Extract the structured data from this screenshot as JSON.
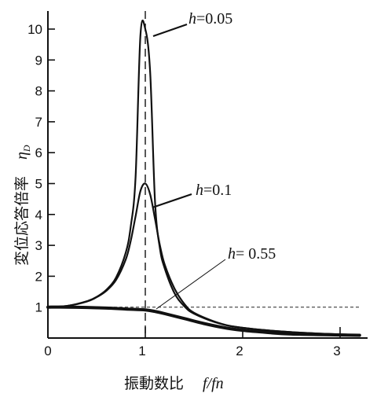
{
  "chart_data": {
    "type": "line",
    "title": "",
    "xlabel": "振動数比 f/fn",
    "xlabel_main": "振動数比",
    "xlabel_math": "f/fn",
    "ylabel": "変位応答倍率 ηD",
    "ylabel_main": "変位応答倍率",
    "ylabel_math": "η",
    "ylabel_sub": "D",
    "xlim": [
      0,
      3.2
    ],
    "ylim": [
      0,
      10.6
    ],
    "x_ticks": [
      0,
      1,
      2,
      3
    ],
    "y_ticks": [
      1,
      2,
      3,
      4,
      5,
      6,
      7,
      8,
      9,
      10
    ],
    "x_tick_labels": [
      "0",
      "1",
      "2",
      "3"
    ],
    "y_tick_labels": [
      "1",
      "2",
      "3",
      "4",
      "5",
      "6",
      "7",
      "8",
      "9",
      "10"
    ],
    "resonance_line_x": 1,
    "reference_line_y": 1,
    "grid": false,
    "series": [
      {
        "name": "h=0.05",
        "label_var": "h",
        "label_eq": "=0.05",
        "damping": 0.05,
        "x": [
          0,
          0.2,
          0.4,
          0.5,
          0.6,
          0.7,
          0.8,
          0.85,
          0.9,
          0.95,
          1.0,
          1.05,
          1.1,
          1.15,
          1.2,
          1.3,
          1.4,
          1.5,
          1.75,
          2.0,
          2.5,
          3.0,
          3.2
        ],
        "values": [
          1.0,
          1.04,
          1.19,
          1.33,
          1.56,
          1.96,
          2.77,
          3.6,
          5.2,
          9.8,
          10.0,
          8.6,
          4.4,
          2.9,
          2.25,
          1.45,
          1.03,
          0.79,
          0.48,
          0.33,
          0.19,
          0.12,
          0.11
        ]
      },
      {
        "name": "h=0.1",
        "label_var": "h",
        "label_eq": "=0.1",
        "damping": 0.1,
        "x": [
          0,
          0.2,
          0.4,
          0.5,
          0.6,
          0.7,
          0.8,
          0.85,
          0.9,
          0.95,
          1.0,
          1.05,
          1.1,
          1.15,
          1.2,
          1.3,
          1.4,
          1.5,
          1.75,
          2.0,
          2.5,
          3.0,
          3.2
        ],
        "values": [
          1.0,
          1.04,
          1.18,
          1.32,
          1.53,
          1.88,
          2.55,
          3.14,
          3.94,
          4.76,
          5.0,
          4.65,
          3.85,
          3.0,
          2.37,
          1.6,
          1.11,
          0.82,
          0.49,
          0.33,
          0.19,
          0.12,
          0.11
        ]
      },
      {
        "name": "h=0.55",
        "label_var": "h",
        "label_eq": "= 0.55",
        "damping": 0.55,
        "x": [
          0,
          0.2,
          0.4,
          0.6,
          0.8,
          1.0,
          1.1,
          1.2,
          1.4,
          1.6,
          1.8,
          2.0,
          2.25,
          2.5,
          3.0,
          3.2
        ],
        "values": [
          1.0,
          1.0,
          0.99,
          0.97,
          0.94,
          0.91,
          0.86,
          0.79,
          0.63,
          0.47,
          0.34,
          0.25,
          0.18,
          0.13,
          0.1,
          0.09
        ]
      }
    ]
  }
}
